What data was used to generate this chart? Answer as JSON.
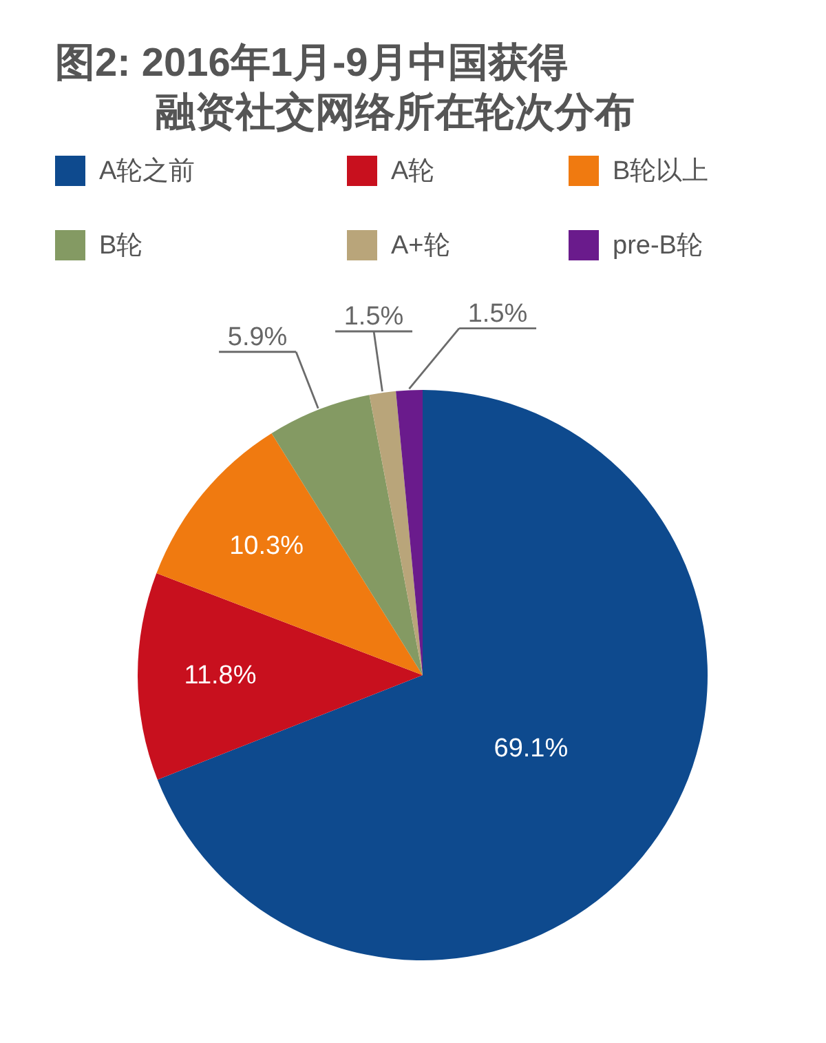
{
  "chart_data": {
    "type": "pie",
    "title": "图2: 2016年1月-9月中国获得融资社交网络所在轮次分布",
    "categories": [
      "A轮之前",
      "A轮",
      "B轮以上",
      "B轮",
      "A+轮",
      "pre-B轮"
    ],
    "values": [
      69.1,
      11.8,
      10.3,
      5.9,
      1.5,
      1.5
    ],
    "colors": [
      "#0e4a8e",
      "#c8101e",
      "#f07a10",
      "#849a63",
      "#b9a57a",
      "#6a1b8c"
    ],
    "value_labels": [
      "69.1%",
      "11.8%",
      "10.3%",
      "5.9%",
      "1.5%",
      "1.5%"
    ],
    "legend": "top"
  }
}
